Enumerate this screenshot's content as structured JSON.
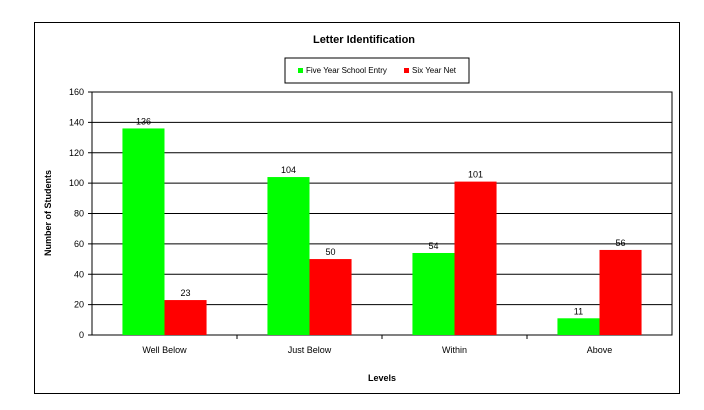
{
  "chart_data": {
    "type": "bar",
    "title": "Letter Identification",
    "xlabel": "Levels",
    "ylabel": "Number of Students",
    "categories": [
      "Well Below",
      "Just Below",
      "Within",
      "Above"
    ],
    "series": [
      {
        "name": "Five Year School Entry",
        "color": "#00ff00",
        "values": [
          136,
          104,
          54,
          11
        ]
      },
      {
        "name": "Six Year Net",
        "color": "#ff0000",
        "values": [
          23,
          50,
          101,
          56
        ]
      }
    ],
    "ylim": [
      0,
      160
    ],
    "y_ticks": [
      0,
      20,
      40,
      60,
      80,
      100,
      120,
      140,
      160
    ],
    "grid": true,
    "legend_position": "top-center",
    "data_labels": true
  }
}
